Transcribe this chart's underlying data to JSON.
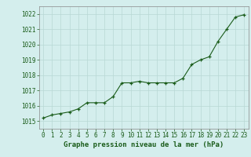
{
  "hours": [
    0,
    1,
    2,
    3,
    4,
    5,
    6,
    7,
    8,
    9,
    10,
    11,
    12,
    13,
    14,
    15,
    16,
    17,
    18,
    19,
    20,
    21,
    22,
    23
  ],
  "pressure": [
    1015.2,
    1015.4,
    1015.5,
    1015.6,
    1015.8,
    1016.2,
    1016.2,
    1016.2,
    1016.6,
    1017.5,
    1017.5,
    1017.6,
    1017.5,
    1017.5,
    1017.5,
    1017.5,
    1017.8,
    1018.7,
    1019.0,
    1019.2,
    1020.2,
    1021.0,
    1021.8,
    1021.95
  ],
  "ylim": [
    1014.5,
    1022.5
  ],
  "xlim": [
    -0.5,
    23.5
  ],
  "yticks": [
    1015,
    1016,
    1017,
    1018,
    1019,
    1020,
    1021,
    1022
  ],
  "xticks": [
    0,
    1,
    2,
    3,
    4,
    5,
    6,
    7,
    8,
    9,
    10,
    11,
    12,
    13,
    14,
    15,
    16,
    17,
    18,
    19,
    20,
    21,
    22,
    23
  ],
  "xlabel": "Graphe pression niveau de la mer (hPa)",
  "line_color": "#1a5c1a",
  "marker_color": "#1a5c1a",
  "bg_color": "#d4eeed",
  "grid_color": "#b8d8d4",
  "axis_label_color": "#1a5c1a",
  "tick_label_color": "#1a5c1a",
  "tick_fontsize": 5.5,
  "xlabel_fontsize": 6.5,
  "spine_color": "#888888"
}
